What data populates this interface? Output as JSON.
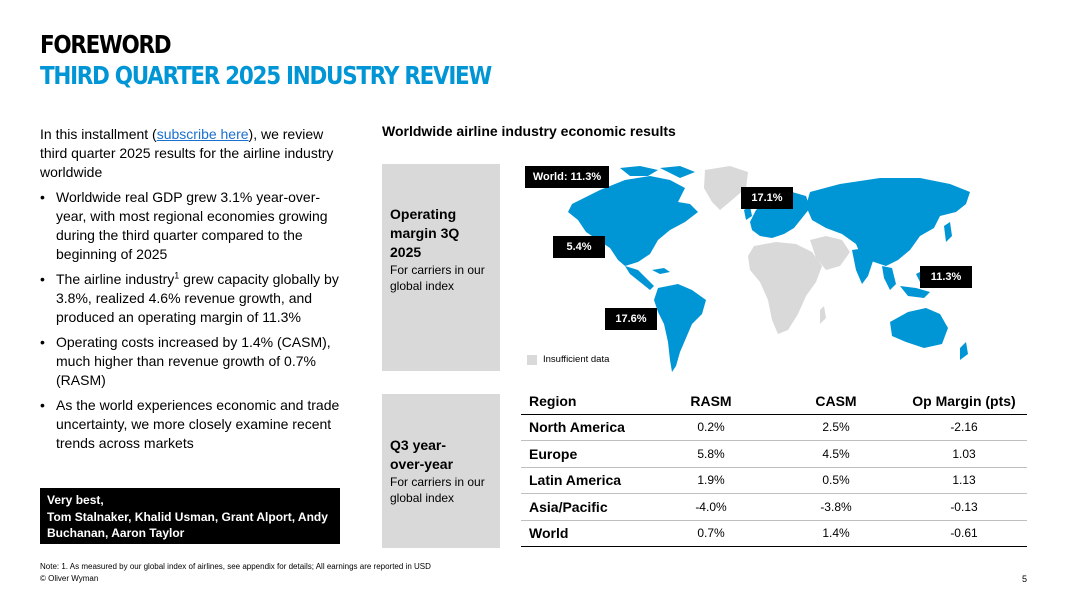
{
  "header": {
    "title": "FOREWORD",
    "subtitle": "THIRD QUARTER 2025 INDUSTRY REVIEW"
  },
  "intro": {
    "before_link": "In this installment (",
    "link_text": "subscribe here",
    "after_link": "), we review third quarter 2025 results for the airline industry worldwide"
  },
  "bullets": [
    {
      "text": "Worldwide real GDP grew 3.1% year-over-year, with most regional economies growing during the third quarter compared to the beginning of 2025"
    },
    {
      "before_sup": "The airline industry",
      "sup": "1",
      "after_sup": " grew capacity globally by 3.8%, realized 4.6% revenue growth, and produced an operating margin of 11.3%"
    },
    {
      "text": "Operating costs increased by 1.4% (CASM), much higher than revenue growth of 0.7% (RASM)"
    },
    {
      "text": "As the world experiences economic and trade uncertainty, we more closely examine recent trends across markets"
    }
  ],
  "signoff": {
    "line1": "Very best,",
    "line2": "Tom Stalnaker, Khalid Usman, Grant Alport, Andy Buchanan, Aaron Taylor"
  },
  "results": {
    "section_title": "Worldwide airline industry economic results",
    "map_box": {
      "heading": "Operating margin 3Q 2025",
      "sub": "For carriers in our global index"
    },
    "map_labels": {
      "world": "World: 11.3%",
      "north_america": "5.4%",
      "europe": "17.1%",
      "asia_pacific": "11.3%",
      "latin_america": "17.6%"
    },
    "legend": "Insufficient data",
    "colors": {
      "data_region": "#0095d5",
      "insufficient": "#d9d9d9"
    },
    "table_box": {
      "heading": "Q3 year-over-year",
      "sub": "For carriers in our global index"
    },
    "table": {
      "headers": [
        "Region",
        "RASM",
        "CASM",
        "Op Margin (pts)"
      ],
      "rows": [
        [
          "North America",
          "0.2%",
          "2.5%",
          "-2.16"
        ],
        [
          "Europe",
          "5.8%",
          "4.5%",
          "1.03"
        ],
        [
          "Latin America",
          "1.9%",
          "0.5%",
          "1.13"
        ],
        [
          "Asia/Pacific",
          "-4.0%",
          "-3.8%",
          "-0.13"
        ],
        [
          "World",
          "0.7%",
          "1.4%",
          "-0.61"
        ]
      ]
    }
  },
  "footer": {
    "note": "Note: 1. As measured by our global index of airlines, see appendix for details; All earnings are reported in USD",
    "copyright": "© Oliver Wyman",
    "page": "5"
  }
}
